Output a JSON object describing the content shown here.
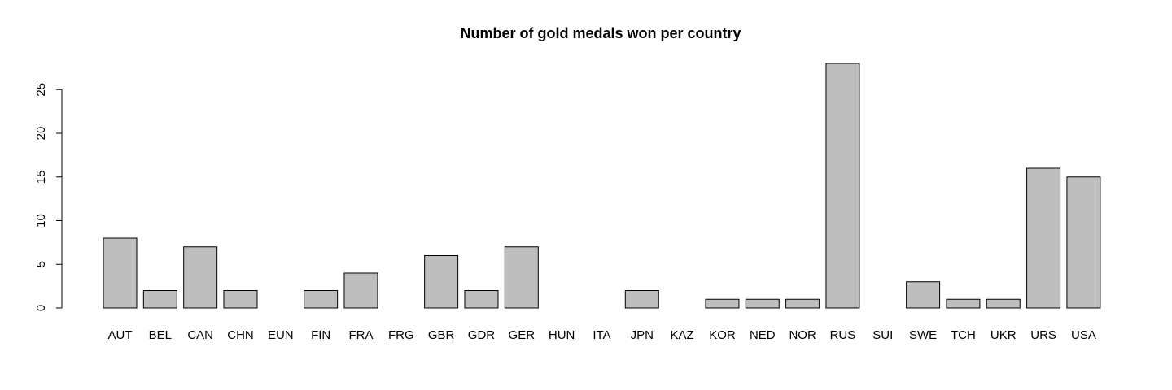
{
  "chart_data": {
    "type": "bar",
    "title": "Number of gold medals won per country",
    "xlabel": "",
    "ylabel": "",
    "categories": [
      "AUT",
      "BEL",
      "CAN",
      "CHN",
      "EUN",
      "FIN",
      "FRA",
      "FRG",
      "GBR",
      "GDR",
      "GER",
      "HUN",
      "ITA",
      "JPN",
      "KAZ",
      "KOR",
      "NED",
      "NOR",
      "RUS",
      "SUI",
      "SWE",
      "TCH",
      "UKR",
      "URS",
      "USA"
    ],
    "values": [
      8,
      2,
      7,
      2,
      0,
      2,
      4,
      0,
      6,
      2,
      7,
      0,
      0,
      2,
      0,
      1,
      1,
      1,
      28,
      0,
      3,
      1,
      1,
      16,
      15
    ],
    "y_ticks": [
      0,
      5,
      10,
      15,
      20,
      25
    ],
    "ylim": [
      0,
      28
    ],
    "grid": false,
    "legend": "none",
    "colors": {
      "bar_fill": "#bebebe",
      "bar_stroke": "#000000"
    }
  }
}
